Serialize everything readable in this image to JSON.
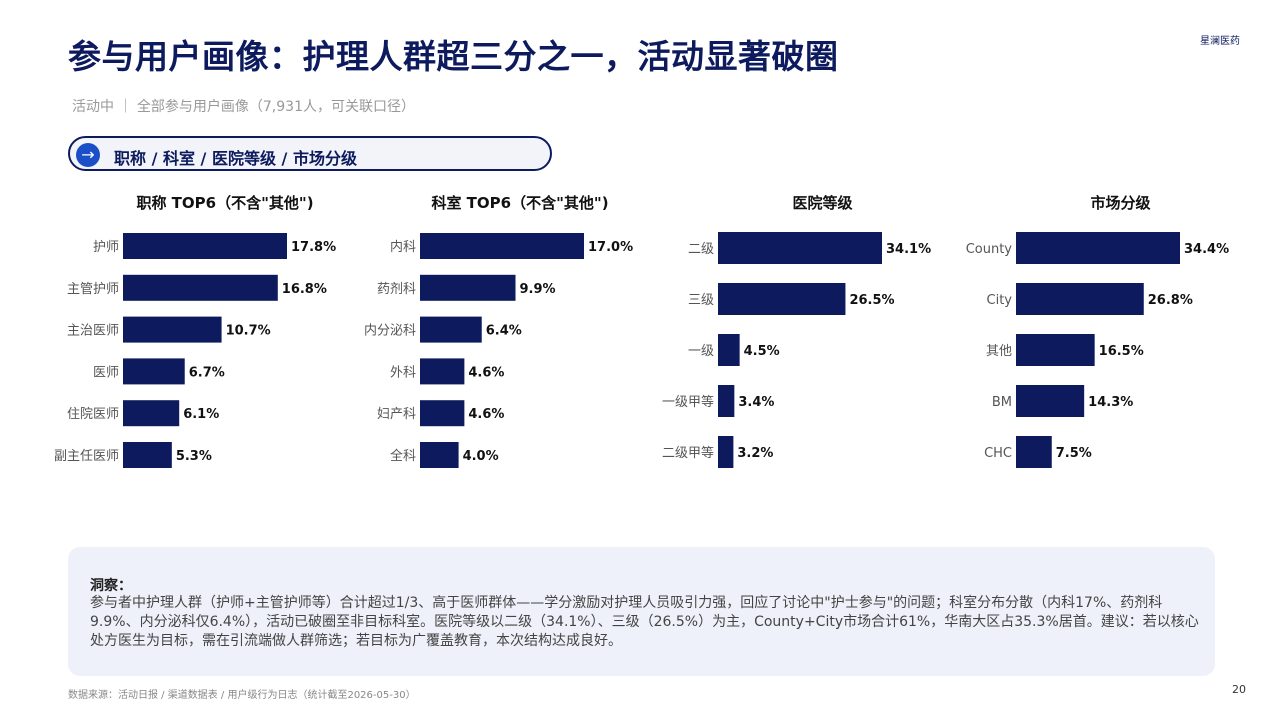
{
  "header": {
    "title": "参与用户画像：护理人群超三分之一，活动显著破圈",
    "brand": "星澜医药",
    "subtitle": "活动中 ｜ 全部参与用户画像（7,931人，可关联口径）"
  },
  "section_pill": {
    "icon": "arrow-right-icon",
    "arrow_glyph": "→",
    "label": "职称 / 科室 / 医院等级 / 市场分级"
  },
  "colors": {
    "bar": "#0d1b5e",
    "accent": "#1a4fc8",
    "panel": "#eef1f9"
  },
  "chart_data": [
    {
      "type": "bar",
      "orientation": "horizontal",
      "title": "职称 TOP6（不含\"其他\")",
      "categories": [
        "护师",
        "主管护师",
        "主治医师",
        "医师",
        "住院医师",
        "副主任医师"
      ],
      "values": [
        17.8,
        16.8,
        10.7,
        6.7,
        6.1,
        5.3
      ],
      "labels": [
        "17.8%",
        "16.8%",
        "10.7%",
        "6.7%",
        "6.1%",
        "5.3%"
      ],
      "unit": "%"
    },
    {
      "type": "bar",
      "orientation": "horizontal",
      "title": "科室 TOP6（不含\"其他\")",
      "categories": [
        "内科",
        "药剂科",
        "内分泌科",
        "外科",
        "妇产科",
        "全科"
      ],
      "values": [
        17.0,
        9.9,
        6.4,
        4.6,
        4.6,
        4.0
      ],
      "labels": [
        "17.0%",
        "9.9%",
        "6.4%",
        "4.6%",
        "4.6%",
        "4.0%"
      ],
      "unit": "%"
    },
    {
      "type": "bar",
      "orientation": "horizontal",
      "title": "医院等级",
      "categories": [
        "二级",
        "三级",
        "一级",
        "一级甲等",
        "二级甲等"
      ],
      "values": [
        34.1,
        26.5,
        4.5,
        3.4,
        3.2
      ],
      "labels": [
        "34.1%",
        "26.5%",
        "4.5%",
        "3.4%",
        "3.2%"
      ],
      "unit": "%"
    },
    {
      "type": "bar",
      "orientation": "horizontal",
      "title": "市场分级",
      "categories": [
        "County",
        "City",
        "其他",
        "BM",
        "CHC"
      ],
      "values": [
        34.4,
        26.8,
        16.5,
        14.3,
        7.5
      ],
      "labels": [
        "34.4%",
        "26.8%",
        "16.5%",
        "14.3%",
        "7.5%"
      ],
      "unit": "%"
    }
  ],
  "insight": {
    "heading": "洞察：",
    "body": "参与者中护理人群（护师+主管护师等）合计超过1/3、高于医师群体——学分激励对护理人员吸引力强，回应了讨论中\"护士参与\"的问题；科室分布分散（内科17%、药剂科9.9%、内分泌科仅6.4%），活动已破圈至非目标科室。医院等级以二级（34.1%）、三级（26.5%）为主，County+City市场合计61%，华南大区占35.3%居首。建议：若以核心处方医生为目标，需在引流端做人群筛选；若目标为广覆盖教育，本次结构达成良好。"
  },
  "footer": {
    "source": "数据来源：活动日报 / 渠道数据表 / 用户级行为日志（统计截至2026-05-30）",
    "page_number": "20"
  }
}
